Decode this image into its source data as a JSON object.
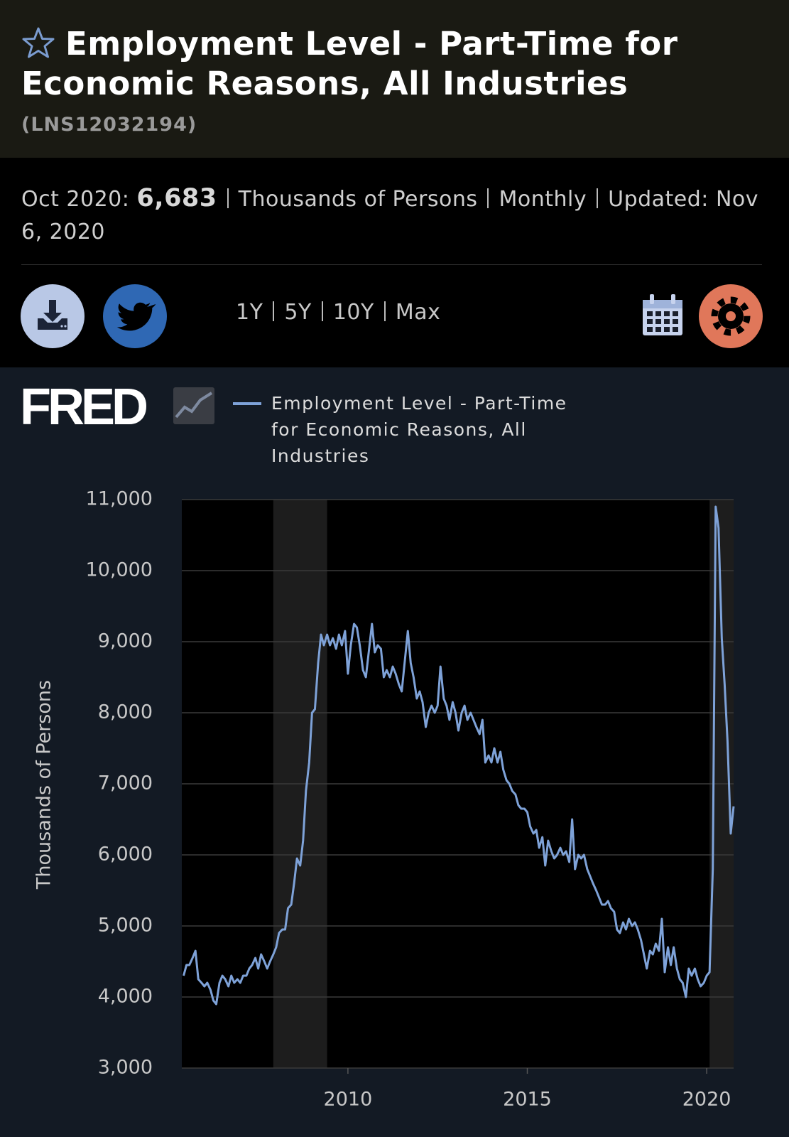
{
  "header": {
    "title": "Employment Level - Part-Time for Economic Reasons, All Industries",
    "series_id": "(LNS12032194)"
  },
  "info": {
    "date_label": "Oct 2020:",
    "value": "6,683",
    "units": "Thousands of Persons",
    "frequency": "Monthly",
    "updated_label": "Updated:",
    "updated": "Nov 6, 2020"
  },
  "range_buttons": [
    "1Y",
    "5Y",
    "10Y",
    "Max"
  ],
  "logo": "FRED",
  "chart_data": {
    "type": "line",
    "y_label": "Thousands of Persons",
    "x": [
      2005.42,
      2005.5,
      2005.58,
      2005.67,
      2005.75,
      2005.83,
      2005.92,
      2006,
      2006.08,
      2006.17,
      2006.25,
      2006.33,
      2006.42,
      2006.5,
      2006.58,
      2006.67,
      2006.75,
      2006.83,
      2006.92,
      2007,
      2007.08,
      2007.17,
      2007.25,
      2007.33,
      2007.42,
      2007.5,
      2007.58,
      2007.67,
      2007.75,
      2007.83,
      2007.92,
      2008,
      2008.08,
      2008.17,
      2008.25,
      2008.33,
      2008.42,
      2008.5,
      2008.58,
      2008.67,
      2008.75,
      2008.83,
      2008.92,
      2009,
      2009.08,
      2009.17,
      2009.25,
      2009.33,
      2009.42,
      2009.5,
      2009.58,
      2009.67,
      2009.75,
      2009.83,
      2009.92,
      2010,
      2010.08,
      2010.17,
      2010.25,
      2010.33,
      2010.42,
      2010.5,
      2010.58,
      2010.67,
      2010.75,
      2010.83,
      2010.92,
      2011,
      2011.08,
      2011.17,
      2011.25,
      2011.33,
      2011.42,
      2011.5,
      2011.58,
      2011.67,
      2011.75,
      2011.83,
      2011.92,
      2012,
      2012.08,
      2012.17,
      2012.25,
      2012.33,
      2012.42,
      2012.5,
      2012.58,
      2012.67,
      2012.75,
      2012.83,
      2012.92,
      2013,
      2013.08,
      2013.17,
      2013.25,
      2013.33,
      2013.42,
      2013.5,
      2013.58,
      2013.67,
      2013.75,
      2013.83,
      2013.92,
      2014,
      2014.08,
      2014.17,
      2014.25,
      2014.33,
      2014.42,
      2014.5,
      2014.58,
      2014.67,
      2014.75,
      2014.83,
      2014.92,
      2015,
      2015.08,
      2015.17,
      2015.25,
      2015.33,
      2015.42,
      2015.5,
      2015.58,
      2015.67,
      2015.75,
      2015.83,
      2015.92,
      2016,
      2016.08,
      2016.17,
      2016.25,
      2016.33,
      2016.42,
      2016.5,
      2016.58,
      2016.67,
      2016.75,
      2016.83,
      2016.92,
      2017,
      2017.08,
      2017.17,
      2017.25,
      2017.33,
      2017.42,
      2017.5,
      2017.58,
      2017.67,
      2017.75,
      2017.83,
      2017.92,
      2018,
      2018.08,
      2018.17,
      2018.25,
      2018.33,
      2018.42,
      2018.5,
      2018.58,
      2018.67,
      2018.75,
      2018.83,
      2018.92,
      2019,
      2019.08,
      2019.17,
      2019.25,
      2019.33,
      2019.42,
      2019.5,
      2019.58,
      2019.67,
      2019.75,
      2019.83,
      2019.92,
      2020,
      2020.08,
      2020.17,
      2020.25,
      2020.33,
      2020.42,
      2020.5,
      2020.58,
      2020.67,
      2020.75
    ],
    "series": [
      {
        "name": "Employment Level - Part-Time for Economic Reasons, All Industries",
        "color": "#7ea2d8",
        "values": [
          4300,
          4450,
          4450,
          4550,
          4650,
          4250,
          4200,
          4150,
          4200,
          4100,
          3950,
          3900,
          4200,
          4300,
          4250,
          4150,
          4300,
          4200,
          4250,
          4200,
          4300,
          4300,
          4400,
          4450,
          4550,
          4400,
          4600,
          4500,
          4400,
          4500,
          4600,
          4700,
          4900,
          4950,
          4950,
          5250,
          5300,
          5600,
          5950,
          5850,
          6200,
          6900,
          7300,
          8000,
          8050,
          8700,
          9100,
          8950,
          9100,
          8950,
          9050,
          8900,
          9100,
          8950,
          9150,
          8550,
          8950,
          9250,
          9200,
          8950,
          8600,
          8500,
          8850,
          9250,
          8850,
          8950,
          8900,
          8500,
          8600,
          8500,
          8650,
          8550,
          8400,
          8300,
          8700,
          9150,
          8700,
          8500,
          8200,
          8300,
          8150,
          7800,
          8000,
          8100,
          8000,
          8100,
          8650,
          8200,
          8100,
          7900,
          8150,
          8000,
          7750,
          8000,
          8100,
          7900,
          8000,
          7900,
          7800,
          7700,
          7900,
          7300,
          7400,
          7300,
          7500,
          7300,
          7450,
          7200,
          7050,
          7000,
          6900,
          6850,
          6700,
          6650,
          6650,
          6600,
          6400,
          6300,
          6350,
          6100,
          6250,
          5850,
          6200,
          6050,
          5950,
          6000,
          6100,
          6000,
          6050,
          5900,
          6500,
          5800,
          6000,
          5950,
          6000,
          5800,
          5700,
          5600,
          5500,
          5400,
          5300,
          5300,
          5350,
          5250,
          5200,
          4950,
          4900,
          5050,
          4950,
          5100,
          5000,
          5050,
          4950,
          4800,
          4600,
          4400,
          4650,
          4600,
          4750,
          4650,
          5100,
          4350,
          4700,
          4450,
          4700,
          4400,
          4250,
          4200,
          4000,
          4400,
          4300,
          4400,
          4250,
          4150,
          4200,
          4300,
          4350,
          5800,
          10900,
          10600,
          9050,
          8400,
          7600,
          6300,
          6683
        ]
      }
    ],
    "recessions": [
      {
        "start": 2007.92,
        "end": 2009.42
      },
      {
        "start": 2020.08,
        "end": 2020.75
      }
    ],
    "recession_color": "#1d1d1d",
    "xlim": [
      2005.37,
      2020.75
    ],
    "ylim": [
      3000,
      11000
    ],
    "xticks": [
      2010,
      2015,
      2020
    ],
    "yticks": [
      {
        "value": 3000,
        "label": "3,000"
      },
      {
        "value": 4000,
        "label": "4,000"
      },
      {
        "value": 5000,
        "label": "5,000"
      },
      {
        "value": 6000,
        "label": "6,000"
      },
      {
        "value": 7000,
        "label": "7,000"
      },
      {
        "value": 8000,
        "label": "8,000"
      },
      {
        "value": 9000,
        "label": "9,000"
      },
      {
        "value": 10000,
        "label": "10,000"
      },
      {
        "value": 11000,
        "label": "11,000"
      }
    ],
    "grid": true
  }
}
